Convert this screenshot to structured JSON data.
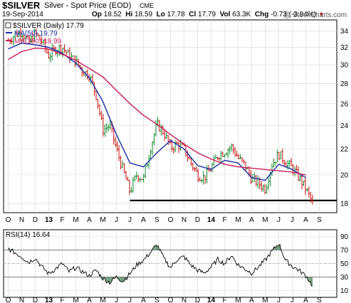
{
  "header": {
    "ticker": "$SILVER",
    "description": "Silver - Spot Price (EOD)",
    "exchange": "CME",
    "date": "19-Sep-2014",
    "open_label": "Op",
    "open": "18.52",
    "high_label": "Hi",
    "high": "18.59",
    "low_label": "Lo",
    "low": "17.78",
    "close_label": "Cl",
    "close": "17.79",
    "volume_label": "Vol",
    "volume": "63.3K",
    "change_label": "Chg",
    "change": "-0.73 (-3.94%)",
    "change_arrow": "▼",
    "copyright": "@ StockCharts.com"
  },
  "legend": {
    "price": "$SILVER (Daily) 17.79",
    "ma50": "MA(50) 19.79",
    "ma200": "MA(200) 19.99",
    "rsi": "RSI(14) 16.64"
  },
  "colors": {
    "up": "#0a8a2a",
    "down": "#cc1111",
    "ma50": "#1a2fa8",
    "ma200": "#c81e5a",
    "grid": "#d6d6d6",
    "support": "#000000",
    "rsi_fill": "#4a7d5a"
  },
  "chart_data": [
    {
      "type": "line",
      "title": "$SILVER (Daily) 17.79",
      "x_ticks": [
        "O",
        "N",
        "D",
        "13",
        "F",
        "M",
        "A",
        "M",
        "J",
        "J",
        "A",
        "S",
        "O",
        "N",
        "D",
        "14",
        "F",
        "M",
        "A",
        "M",
        "J",
        "J",
        "A",
        "S"
      ],
      "y_ticks": [
        18,
        20,
        22,
        24,
        26,
        28,
        30,
        32,
        34
      ],
      "ylim": [
        17.4,
        35.4
      ],
      "scale": "log",
      "support_level": 18.2,
      "series": [
        {
          "name": "$SILVER (Daily) 17.79",
          "points": [
            [
              0,
              32.8
            ],
            [
              0.5,
              33.5
            ],
            [
              1,
              33.9
            ],
            [
              1.5,
              32.5
            ],
            [
              2,
              33.7
            ],
            [
              2.5,
              32.6
            ],
            [
              3,
              31.0
            ],
            [
              3.5,
              31.8
            ],
            [
              4,
              32.0
            ],
            [
              4.5,
              31.0
            ],
            [
              5,
              30.4
            ],
            [
              5.5,
              29.3
            ],
            [
              6,
              28.9
            ],
            [
              6.5,
              26.8
            ],
            [
              7,
              23.6
            ],
            [
              7.5,
              24.0
            ],
            [
              8,
              22.0
            ],
            [
              8.5,
              20.3
            ],
            [
              9,
              18.8
            ],
            [
              9.5,
              20.0
            ],
            [
              10,
              19.7
            ],
            [
              10.5,
              22.0
            ],
            [
              11,
              24.1
            ],
            [
              11.5,
              23.4
            ],
            [
              12,
              22.1
            ],
            [
              12.5,
              22.4
            ],
            [
              13,
              22.0
            ],
            [
              13.5,
              20.9
            ],
            [
              14,
              20.0
            ],
            [
              14.5,
              19.8
            ],
            [
              15,
              20.5
            ],
            [
              15.5,
              21.5
            ],
            [
              16,
              21.8
            ],
            [
              16.5,
              22.2
            ],
            [
              17,
              21.3
            ],
            [
              17.5,
              20.7
            ],
            [
              18,
              19.7
            ],
            [
              18.5,
              19.4
            ],
            [
              19,
              19.0
            ],
            [
              19.5,
              20.8
            ],
            [
              20,
              21.6
            ],
            [
              20.5,
              21.0
            ],
            [
              21,
              20.5
            ],
            [
              21.5,
              19.8
            ],
            [
              22,
              19.0
            ],
            [
              22.5,
              18.0
            ]
          ]
        },
        {
          "name": "MA(50) 19.79",
          "points": [
            [
              0,
              31.8
            ],
            [
              1,
              32.5
            ],
            [
              2,
              32.3
            ],
            [
              3,
              32.0
            ],
            [
              4,
              31.3
            ],
            [
              5,
              30.2
            ],
            [
              6,
              28.6
            ],
            [
              7,
              26.2
            ],
            [
              8,
              23.2
            ],
            [
              9,
              20.9
            ],
            [
              10,
              20.6
            ],
            [
              11,
              21.7
            ],
            [
              12,
              22.7
            ],
            [
              13,
              22.0
            ],
            [
              14,
              20.7
            ],
            [
              15,
              20.4
            ],
            [
              16,
              21.1
            ],
            [
              17,
              20.9
            ],
            [
              18,
              19.8
            ],
            [
              19,
              19.6
            ],
            [
              20,
              20.8
            ],
            [
              21,
              20.4
            ],
            [
              22,
              19.8
            ]
          ]
        },
        {
          "name": "MA(200) 19.99",
          "points": [
            [
              0,
              30.6
            ],
            [
              1,
              31.5
            ],
            [
              2,
              31.9
            ],
            [
              3,
              31.8
            ],
            [
              4,
              31.2
            ],
            [
              5,
              30.5
            ],
            [
              6,
              29.6
            ],
            [
              7,
              28.7
            ],
            [
              8,
              27.3
            ],
            [
              9,
              26.0
            ],
            [
              10,
              24.9
            ],
            [
              11,
              24.1
            ],
            [
              12,
              23.2
            ],
            [
              13,
              22.4
            ],
            [
              14,
              21.7
            ],
            [
              15,
              21.2
            ],
            [
              16,
              20.8
            ],
            [
              17,
              20.6
            ],
            [
              18,
              20.5
            ],
            [
              19,
              20.4
            ],
            [
              20,
              20.3
            ],
            [
              21,
              20.2
            ],
            [
              22,
              20.0
            ]
          ]
        }
      ]
    },
    {
      "type": "line",
      "title": "RSI(14) 16.64",
      "x_ticks": [
        "O",
        "N",
        "D",
        "13",
        "F",
        "M",
        "A",
        "M",
        "J",
        "J",
        "A",
        "S",
        "O",
        "N",
        "D",
        "14",
        "F",
        "M",
        "A",
        "M",
        "J",
        "J",
        "A",
        "S"
      ],
      "y_ticks": [
        10,
        30,
        50,
        70,
        90
      ],
      "ylim": [
        0,
        100
      ],
      "overbought": 70,
      "oversold": 30,
      "series": [
        {
          "name": "RSI(14) 16.64",
          "points": [
            [
              0,
              72
            ],
            [
              0.5,
              66
            ],
            [
              1,
              60
            ],
            [
              1.5,
              52
            ],
            [
              2,
              58
            ],
            [
              2.5,
              45
            ],
            [
              3,
              35
            ],
            [
              3.5,
              42
            ],
            [
              4,
              50
            ],
            [
              4.5,
              38
            ],
            [
              5,
              44
            ],
            [
              5.5,
              38
            ],
            [
              6,
              32
            ],
            [
              6.5,
              40
            ],
            [
              7,
              28
            ],
            [
              7.5,
              22
            ],
            [
              8,
              30
            ],
            [
              8.5,
              24
            ],
            [
              9,
              35
            ],
            [
              9.5,
              48
            ],
            [
              10,
              55
            ],
            [
              10.5,
              66
            ],
            [
              11,
              78
            ],
            [
              11.5,
              58
            ],
            [
              12,
              44
            ],
            [
              12.5,
              56
            ],
            [
              13,
              60
            ],
            [
              13.5,
              48
            ],
            [
              14,
              40
            ],
            [
              14.5,
              36
            ],
            [
              15,
              45
            ],
            [
              15.5,
              56
            ],
            [
              16,
              50
            ],
            [
              16.5,
              62
            ],
            [
              17,
              48
            ],
            [
              17.5,
              42
            ],
            [
              18,
              36
            ],
            [
              18.5,
              45
            ],
            [
              19,
              55
            ],
            [
              19.5,
              68
            ],
            [
              20,
              80
            ],
            [
              20.5,
              55
            ],
            [
              21,
              46
            ],
            [
              21.5,
              40
            ],
            [
              22,
              32
            ],
            [
              22.5,
              17
            ]
          ]
        }
      ]
    }
  ]
}
